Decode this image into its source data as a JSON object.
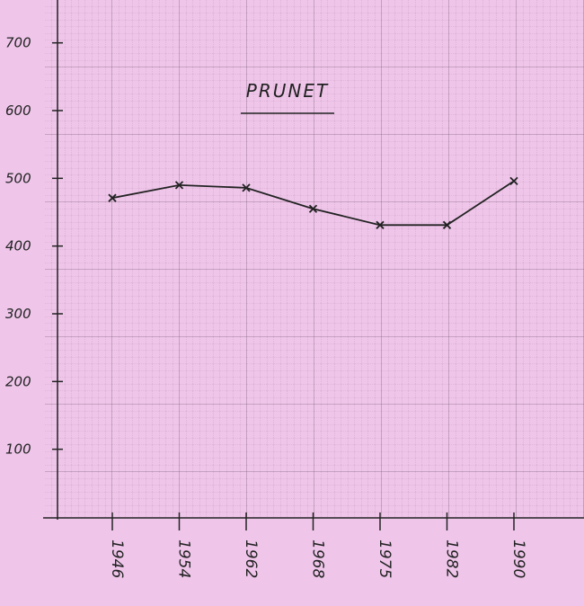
{
  "chart_data": {
    "type": "line",
    "title": "PRUNET",
    "categories": [
      "1946",
      "1954",
      "1962",
      "1968",
      "1975",
      "1982",
      "1990"
    ],
    "values": [
      471,
      490,
      486,
      455,
      431,
      431,
      496
    ],
    "color": "#222222",
    "ylim": [
      0,
      750
    ],
    "yticks": [
      100,
      200,
      300,
      400,
      500,
      600,
      700
    ]
  }
}
